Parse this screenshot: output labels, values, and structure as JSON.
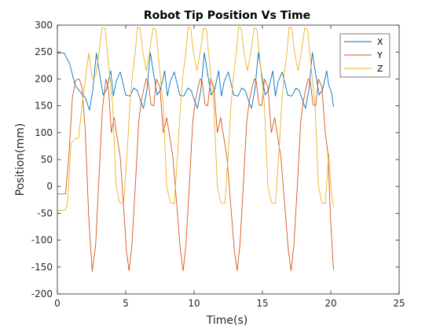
{
  "chart_data": {
    "type": "line",
    "title": "Robot Tip Position Vs Time",
    "xlabel": "Time(s)",
    "ylabel": "Position(mm)",
    "xlim": [
      0,
      25
    ],
    "ylim": [
      -200,
      300
    ],
    "xticks": [
      0,
      5,
      10,
      15,
      20,
      25
    ],
    "yticks": [
      -200,
      -150,
      -100,
      -50,
      0,
      50,
      100,
      150,
      200,
      250,
      300
    ],
    "grid": false,
    "legend": "top-right",
    "period_s": 3.97,
    "series": [
      {
        "name": "X",
        "color": "#0072bd",
        "points": [
          [
            0,
            248
          ],
          [
            0.5,
            248
          ],
          [
            0.9,
            228
          ],
          [
            1.3,
            188
          ],
          [
            1.7,
            175
          ],
          [
            2.05,
            165
          ],
          [
            2.35,
            142
          ],
          [
            2.6,
            180
          ],
          [
            2.85,
            248
          ],
          [
            3.1,
            208
          ],
          [
            3.35,
            170
          ],
          [
            3.6,
            180
          ],
          [
            3.9,
            215
          ],
          [
            4.1,
            168
          ],
          [
            4.3,
            195
          ],
          [
            4.6,
            213
          ],
          [
            4.8,
            192
          ],
          [
            5.0,
            170
          ],
          [
            5.3,
            168
          ],
          [
            5.6,
            183
          ],
          [
            5.85,
            178
          ],
          [
            6.05,
            162
          ],
          [
            6.3,
            145
          ],
          [
            6.55,
            180
          ],
          [
            6.8,
            249
          ],
          [
            7.05,
            208
          ],
          [
            7.3,
            170
          ],
          [
            7.55,
            180
          ],
          [
            7.85,
            215
          ],
          [
            8.05,
            168
          ],
          [
            8.25,
            195
          ],
          [
            8.55,
            213
          ],
          [
            8.75,
            192
          ],
          [
            8.95,
            170
          ],
          [
            9.25,
            168
          ],
          [
            9.55,
            183
          ],
          [
            9.8,
            178
          ],
          [
            10.0,
            162
          ],
          [
            10.25,
            145
          ],
          [
            10.5,
            180
          ],
          [
            10.75,
            249
          ],
          [
            11.0,
            208
          ],
          [
            11.25,
            170
          ],
          [
            11.5,
            180
          ],
          [
            11.8,
            215
          ],
          [
            12.0,
            168
          ],
          [
            12.2,
            195
          ],
          [
            12.5,
            213
          ],
          [
            12.7,
            192
          ],
          [
            12.9,
            170
          ],
          [
            13.2,
            168
          ],
          [
            13.5,
            183
          ],
          [
            13.75,
            178
          ],
          [
            13.95,
            162
          ],
          [
            14.2,
            145
          ],
          [
            14.45,
            180
          ],
          [
            14.7,
            249
          ],
          [
            14.95,
            208
          ],
          [
            15.2,
            170
          ],
          [
            15.45,
            180
          ],
          [
            15.75,
            215
          ],
          [
            15.95,
            168
          ],
          [
            16.15,
            195
          ],
          [
            16.45,
            213
          ],
          [
            16.65,
            192
          ],
          [
            16.85,
            170
          ],
          [
            17.15,
            168
          ],
          [
            17.45,
            183
          ],
          [
            17.7,
            178
          ],
          [
            17.9,
            162
          ],
          [
            18.15,
            145
          ],
          [
            18.4,
            180
          ],
          [
            18.65,
            249
          ],
          [
            18.9,
            208
          ],
          [
            19.15,
            170
          ],
          [
            19.4,
            180
          ],
          [
            19.7,
            215
          ],
          [
            19.85,
            188
          ],
          [
            20.05,
            175
          ],
          [
            20.2,
            148
          ]
        ]
      },
      {
        "name": "Y",
        "color": "#d95319",
        "points": [
          [
            0,
            -14
          ],
          [
            0.6,
            -14
          ],
          [
            0.85,
            60
          ],
          [
            1.1,
            165
          ],
          [
            1.35,
            198
          ],
          [
            1.6,
            200
          ],
          [
            1.8,
            185
          ],
          [
            2.05,
            100
          ],
          [
            2.3,
            -60
          ],
          [
            2.55,
            -158
          ],
          [
            2.8,
            -110
          ],
          [
            3.05,
            20
          ],
          [
            3.3,
            145
          ],
          [
            3.55,
            200
          ],
          [
            3.75,
            180
          ],
          [
            3.95,
            100
          ],
          [
            4.15,
            128
          ],
          [
            4.35,
            95
          ],
          [
            4.6,
            55
          ],
          [
            4.85,
            -40
          ],
          [
            5.05,
            -120
          ],
          [
            5.25,
            -157
          ],
          [
            5.45,
            -110
          ],
          [
            5.7,
            0
          ],
          [
            5.95,
            120
          ],
          [
            6.15,
            160
          ],
          [
            6.35,
            185
          ],
          [
            6.5,
            200
          ],
          [
            6.65,
            195
          ],
          [
            6.85,
            152
          ],
          [
            7.05,
            150
          ],
          [
            7.25,
            200
          ],
          [
            7.5,
            185
          ],
          [
            7.75,
            100
          ],
          [
            8.0,
            128
          ],
          [
            8.2,
            95
          ],
          [
            8.45,
            55
          ],
          [
            8.75,
            -40
          ],
          [
            9.0,
            -120
          ],
          [
            9.2,
            -157
          ],
          [
            9.4,
            -110
          ],
          [
            9.65,
            0
          ],
          [
            9.9,
            120
          ],
          [
            10.1,
            160
          ],
          [
            10.3,
            185
          ],
          [
            10.45,
            200
          ],
          [
            10.6,
            195
          ],
          [
            10.8,
            152
          ],
          [
            11.0,
            150
          ],
          [
            11.2,
            200
          ],
          [
            11.45,
            185
          ],
          [
            11.7,
            100
          ],
          [
            11.95,
            128
          ],
          [
            12.15,
            95
          ],
          [
            12.4,
            55
          ],
          [
            12.7,
            -40
          ],
          [
            12.95,
            -120
          ],
          [
            13.15,
            -157
          ],
          [
            13.35,
            -110
          ],
          [
            13.6,
            0
          ],
          [
            13.85,
            120
          ],
          [
            14.05,
            160
          ],
          [
            14.25,
            185
          ],
          [
            14.4,
            200
          ],
          [
            14.55,
            195
          ],
          [
            14.75,
            152
          ],
          [
            14.95,
            150
          ],
          [
            15.15,
            200
          ],
          [
            15.4,
            185
          ],
          [
            15.65,
            100
          ],
          [
            15.9,
            128
          ],
          [
            16.1,
            95
          ],
          [
            16.35,
            55
          ],
          [
            16.65,
            -40
          ],
          [
            16.9,
            -120
          ],
          [
            17.1,
            -157
          ],
          [
            17.3,
            -110
          ],
          [
            17.55,
            0
          ],
          [
            17.8,
            120
          ],
          [
            18.0,
            160
          ],
          [
            18.2,
            185
          ],
          [
            18.35,
            200
          ],
          [
            18.5,
            195
          ],
          [
            18.7,
            152
          ],
          [
            18.9,
            150
          ],
          [
            19.1,
            200
          ],
          [
            19.35,
            185
          ],
          [
            19.6,
            100
          ],
          [
            19.8,
            60
          ],
          [
            20.0,
            -70
          ],
          [
            20.2,
            -155
          ]
        ]
      },
      {
        "name": "Z",
        "color": "#edb120",
        "points": [
          [
            0,
            -45
          ],
          [
            0.6,
            -44
          ],
          [
            0.75,
            -30
          ],
          [
            1.0,
            80
          ],
          [
            1.3,
            88
          ],
          [
            1.55,
            90
          ],
          [
            1.8,
            150
          ],
          [
            2.05,
            200
          ],
          [
            2.3,
            248
          ],
          [
            2.55,
            200
          ],
          [
            2.8,
            205
          ],
          [
            3.05,
            250
          ],
          [
            3.25,
            295
          ],
          [
            3.5,
            294
          ],
          [
            3.8,
            212
          ],
          [
            4.05,
            150
          ],
          [
            4.3,
            0
          ],
          [
            4.55,
            -30
          ],
          [
            4.85,
            -32
          ],
          [
            5.1,
            60
          ],
          [
            5.3,
            150
          ],
          [
            5.5,
            210
          ],
          [
            5.7,
            250
          ],
          [
            5.85,
            296
          ],
          [
            6.05,
            294
          ],
          [
            6.25,
            250
          ],
          [
            6.5,
            215
          ],
          [
            6.75,
            250
          ],
          [
            7.0,
            295
          ],
          [
            7.2,
            292
          ],
          [
            7.5,
            212
          ],
          [
            7.75,
            150
          ],
          [
            8.0,
            0
          ],
          [
            8.25,
            -30
          ],
          [
            8.55,
            -32
          ],
          [
            8.8,
            60
          ],
          [
            9.0,
            150
          ],
          [
            9.2,
            210
          ],
          [
            9.4,
            250
          ],
          [
            9.55,
            296
          ],
          [
            9.75,
            294
          ],
          [
            9.95,
            250
          ],
          [
            10.2,
            215
          ],
          [
            10.45,
            250
          ],
          [
            10.7,
            295
          ],
          [
            10.9,
            292
          ],
          [
            11.2,
            212
          ],
          [
            11.45,
            150
          ],
          [
            11.7,
            0
          ],
          [
            11.95,
            -30
          ],
          [
            12.25,
            -32
          ],
          [
            12.5,
            60
          ],
          [
            12.7,
            150
          ],
          [
            12.9,
            210
          ],
          [
            13.1,
            250
          ],
          [
            13.25,
            296
          ],
          [
            13.45,
            294
          ],
          [
            13.65,
            250
          ],
          [
            13.9,
            215
          ],
          [
            14.15,
            250
          ],
          [
            14.4,
            295
          ],
          [
            14.6,
            292
          ],
          [
            14.9,
            212
          ],
          [
            15.15,
            150
          ],
          [
            15.4,
            0
          ],
          [
            15.65,
            -30
          ],
          [
            15.95,
            -32
          ],
          [
            16.2,
            60
          ],
          [
            16.4,
            150
          ],
          [
            16.6,
            210
          ],
          [
            16.8,
            250
          ],
          [
            16.95,
            296
          ],
          [
            17.15,
            294
          ],
          [
            17.35,
            250
          ],
          [
            17.6,
            215
          ],
          [
            17.85,
            250
          ],
          [
            18.1,
            295
          ],
          [
            18.3,
            292
          ],
          [
            18.6,
            212
          ],
          [
            18.85,
            150
          ],
          [
            19.1,
            0
          ],
          [
            19.35,
            -30
          ],
          [
            19.6,
            -32
          ],
          [
            19.85,
            60
          ],
          [
            20.0,
            0
          ],
          [
            20.2,
            -38
          ]
        ]
      }
    ]
  }
}
